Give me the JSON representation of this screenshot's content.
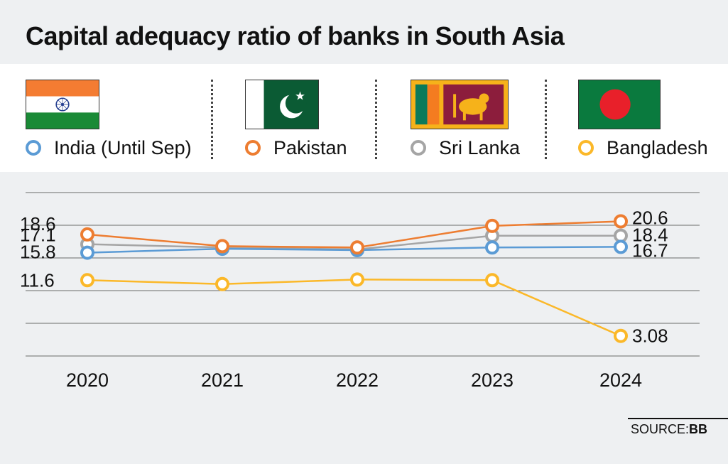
{
  "title": "Capital adequacy ratio of banks in South Asia",
  "legend": [
    {
      "label": "India (Until Sep)",
      "color": "#5b9bd5",
      "flag": "india-flag"
    },
    {
      "label": "Pakistan",
      "color": "#ed7d31",
      "flag": "pakistan-flag"
    },
    {
      "label": "Sri Lanka",
      "color": "#a5a5a5",
      "flag": "sri-lanka-flag"
    },
    {
      "label": "Bangladesh",
      "color": "#fbb829",
      "flag": "bangladesh-flag"
    }
  ],
  "source": {
    "prefix": "SOURCE:",
    "name": "BB"
  },
  "chart_data": {
    "type": "line",
    "title": "Capital adequacy ratio of banks in South Asia",
    "xlabel": "",
    "ylabel": "",
    "x": [
      "2020",
      "2021",
      "2022",
      "2023",
      "2024"
    ],
    "ylim": [
      0,
      25
    ],
    "grid": true,
    "series": [
      {
        "name": "India (Until Sep)",
        "color": "#5b9bd5",
        "values": [
          15.8,
          16.4,
          16.2,
          16.6,
          16.7
        ]
      },
      {
        "name": "Pakistan",
        "color": "#ed7d31",
        "values": [
          18.6,
          16.8,
          16.6,
          19.9,
          20.6
        ]
      },
      {
        "name": "Sri Lanka",
        "color": "#a5a5a5",
        "values": [
          17.1,
          16.6,
          16.3,
          18.4,
          18.4
        ]
      },
      {
        "name": "Bangladesh",
        "color": "#fbb829",
        "values": [
          11.6,
          11.0,
          11.7,
          11.6,
          3.08
        ]
      }
    ],
    "data_labels": [
      {
        "text": "18.6",
        "series": "Pakistan",
        "x": "2020",
        "value": 18.6,
        "side": "left"
      },
      {
        "text": "17.1",
        "series": "Sri Lanka",
        "x": "2020",
        "value": 17.1,
        "side": "left"
      },
      {
        "text": "15.8",
        "series": "India (Until Sep)",
        "x": "2020",
        "value": 15.8,
        "side": "left"
      },
      {
        "text": "11.6",
        "series": "Bangladesh",
        "x": "2020",
        "value": 11.6,
        "side": "left"
      },
      {
        "text": "20.6",
        "series": "Pakistan",
        "x": "2024",
        "value": 20.6,
        "side": "right"
      },
      {
        "text": "18.4",
        "series": "Sri Lanka",
        "x": "2024",
        "value": 18.4,
        "side": "right"
      },
      {
        "text": "16.7",
        "series": "India (Until Sep)",
        "x": "2024",
        "value": 16.7,
        "side": "right"
      },
      {
        "text": "3.08",
        "series": "Bangladesh",
        "x": "2024",
        "value": 3.08,
        "side": "right"
      }
    ]
  }
}
